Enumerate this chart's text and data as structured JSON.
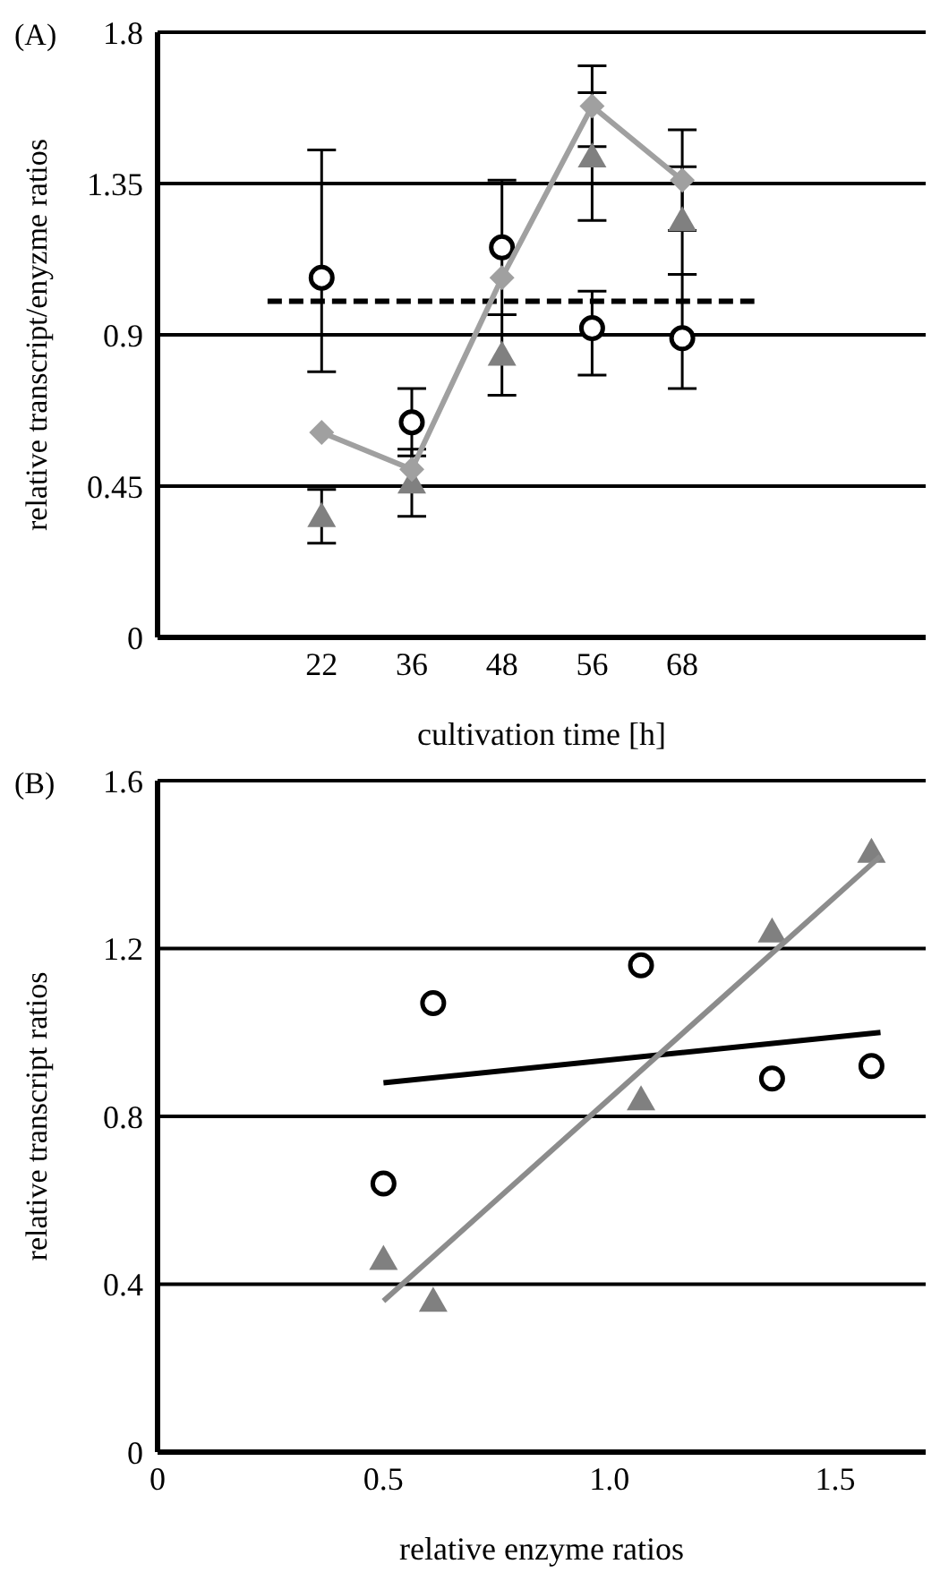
{
  "chart_data": [
    {
      "type": "scatter",
      "title": "(A)",
      "xlabel": "cultivation time [h]",
      "ylabel": "relative transcript/enyzme ratios",
      "categories": [
        "22",
        "36",
        "48",
        "56",
        "68"
      ],
      "series": [
        {
          "color": "#000000",
          "marker": "circle",
          "values": [
            1.07,
            0.64,
            1.16,
            0.92,
            0.89
          ],
          "errors": [
            [
              0.79,
              1.45
            ],
            [
              0.54,
              0.74
            ],
            [
              0.96,
              1.36
            ],
            [
              0.78,
              1.03
            ],
            [
              0.74,
              1.08
            ]
          ]
        },
        {
          "color": "#808080",
          "marker": "triangle",
          "values": [
            0.36,
            0.46,
            0.84,
            1.43,
            1.24
          ],
          "errors": [
            [
              0.28,
              0.44
            ],
            [
              0.36,
              0.56
            ],
            [
              0.72,
              0.96
            ],
            [
              1.24,
              1.62
            ],
            [
              1.08,
              1.4
            ]
          ]
        },
        {
          "type": "line",
          "color": "#a0a0a0",
          "marker": "diamond",
          "values": [
            0.61,
            0.5,
            1.07,
            1.58,
            1.36
          ],
          "errors": [
            null,
            null,
            null,
            [
              1.46,
              1.7
            ],
            [
              1.21,
              1.51
            ]
          ]
        }
      ],
      "ylim": [
        0,
        1.8
      ],
      "yticks": [
        0,
        0.45,
        0.9,
        1.35,
        1.8
      ],
      "grid": "y",
      "legend": false,
      "ref_lines": [
        {
          "axis": "y",
          "value": 1.0,
          "color": "#000000",
          "line_style": "dashed"
        }
      ]
    },
    {
      "type": "scatter",
      "title": "(B)",
      "xlabel": "relative enzyme ratios",
      "ylabel": "relative transcript ratios",
      "series": [
        {
          "color": "#000000",
          "marker": "circle",
          "x": [
            0.61,
            0.5,
            1.07,
            1.58,
            1.36
          ],
          "values": [
            1.07,
            0.64,
            1.16,
            0.92,
            0.89
          ]
        },
        {
          "color": "#808080",
          "marker": "triangle",
          "x": [
            0.61,
            0.5,
            1.07,
            1.58,
            1.36
          ],
          "values": [
            0.36,
            0.46,
            0.84,
            1.43,
            1.24
          ]
        },
        {
          "type": "line",
          "color": "#000000",
          "marker": "none",
          "x": [
            0.5,
            1.6
          ],
          "values": [
            0.88,
            1.0
          ]
        },
        {
          "type": "line",
          "color": "#8c8c8c",
          "marker": "none",
          "x": [
            0.5,
            1.6
          ],
          "values": [
            0.36,
            1.42
          ]
        }
      ],
      "xlim": [
        0,
        1.7
      ],
      "xticks": [
        0,
        0.5,
        {
          "value": 1,
          "label": "1.0"
        },
        1.5
      ],
      "ylim": [
        0,
        1.6
      ],
      "yticks": [
        0,
        0.4,
        0.8,
        1.2,
        1.6
      ],
      "grid": "y",
      "legend": false
    }
  ]
}
